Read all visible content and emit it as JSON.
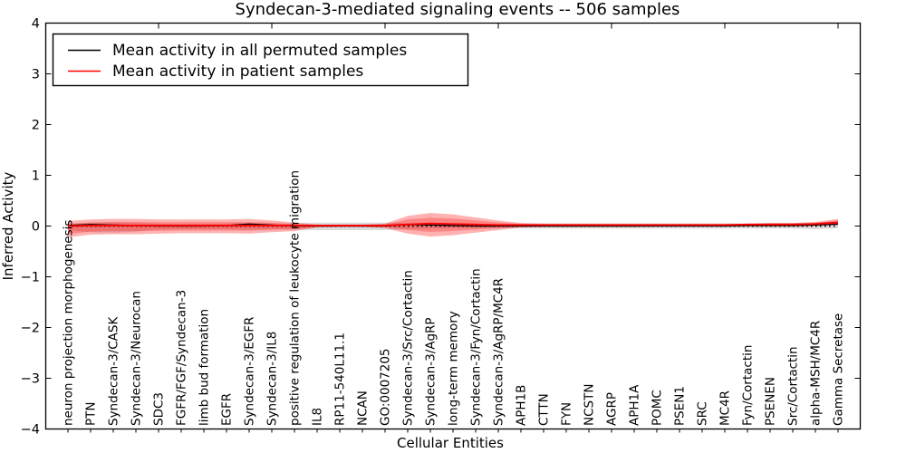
{
  "figure": {
    "background": "#ffffff",
    "axis_color": "#000000"
  },
  "chart_data": {
    "type": "line",
    "title": "Syndecan-3-mediated signaling events -- 506 samples",
    "xlabel": "Cellular Entities",
    "ylabel": "Inferred Activity",
    "ylim": [
      -4,
      4
    ],
    "yticks": [
      4,
      3,
      2,
      1,
      0,
      -1,
      -2,
      -3,
      -4
    ],
    "grid": false,
    "zero_line": {
      "show": true,
      "style": "dotted",
      "color": "#000000"
    },
    "legend_position": "upper left",
    "legend": [
      {
        "label": "Mean activity in all permuted samples",
        "color": "#000000"
      },
      {
        "label": "Mean activity in patient samples",
        "color": "#ff0000"
      }
    ],
    "categories": [
      "neuron projection morphogenesis",
      "PTN",
      "Syndecan-3/CASK",
      "Syndecan-3/Neurocan",
      "SDC3",
      "FGFR/FGF/Syndecan-3",
      "limb bud formation",
      "EGFR",
      "Syndecan-3/EGFR",
      "Syndecan-3/IL8",
      "positive regulation of leukocyte migration",
      "IL8",
      "RP11-540L11.1",
      "NCAN",
      "GO:0007205",
      "Syndecan-3/Src/Cortactin",
      "Syndecan-3/AgRP",
      "long-term memory",
      "Syndecan-3/Fyn/Cortactin",
      "Syndecan-3/AgRP/MC4R",
      "APH1B",
      "CTTN",
      "FYN",
      "NCSTN",
      "AGRP",
      "APH1A",
      "POMC",
      "PSEN1",
      "SRC",
      "MC4R",
      "Fyn/Cortactin",
      "PSENEN",
      "Src/Cortactin",
      "alpha-MSH/MC4R",
      "Gamma Secretase"
    ],
    "series": [
      {
        "name": "Mean activity in all permuted samples",
        "color": "#000000",
        "values": [
          0.01,
          0.03,
          0.02,
          0.01,
          0.0,
          0.0,
          0.0,
          0.01,
          0.04,
          0.02,
          0.0,
          0.0,
          0.0,
          0.0,
          0.0,
          0.03,
          0.02,
          0.01,
          0.0,
          0.0,
          0.0,
          0.0,
          0.0,
          0.0,
          0.0,
          0.0,
          0.0,
          0.0,
          0.0,
          0.0,
          0.01,
          0.01,
          0.01,
          0.02,
          0.04
        ]
      },
      {
        "name": "Mean activity in patient samples",
        "color": "#ff0000",
        "values": [
          0.0,
          0.01,
          0.01,
          0.01,
          0.01,
          0.01,
          0.01,
          0.01,
          0.01,
          0.01,
          0.01,
          0.01,
          0.01,
          0.01,
          0.01,
          0.03,
          0.05,
          0.04,
          0.03,
          0.02,
          0.02,
          0.02,
          0.02,
          0.02,
          0.02,
          0.02,
          0.02,
          0.02,
          0.02,
          0.02,
          0.03,
          0.03,
          0.03,
          0.04,
          0.07
        ]
      }
    ],
    "bands": [
      {
        "name": "permuted-samples-std",
        "color": "#000000",
        "opacity": 0.14,
        "hi": [
          0.05,
          0.07,
          0.07,
          0.06,
          0.05,
          0.04,
          0.04,
          0.05,
          0.06,
          0.05,
          0.06,
          0.07,
          0.07,
          0.07,
          0.07,
          0.06,
          0.05,
          0.04,
          0.04,
          0.04,
          0.05,
          0.05,
          0.05,
          0.05,
          0.05,
          0.05,
          0.05,
          0.05,
          0.05,
          0.05,
          0.05,
          0.06,
          0.06,
          0.07,
          0.09
        ],
        "lo": [
          -0.08,
          -0.12,
          -0.13,
          -0.11,
          -0.07,
          -0.06,
          -0.06,
          -0.06,
          -0.07,
          -0.06,
          -0.07,
          -0.08,
          -0.08,
          -0.08,
          -0.08,
          -0.06,
          -0.05,
          -0.04,
          -0.04,
          -0.04,
          -0.05,
          -0.05,
          -0.05,
          -0.05,
          -0.05,
          -0.05,
          -0.05,
          -0.05,
          -0.05,
          -0.05,
          -0.05,
          -0.05,
          -0.05,
          -0.06,
          -0.05
        ]
      },
      {
        "name": "patient-samples-std",
        "color": "#ff0000",
        "opacity": 0.3,
        "inner_opacity": 0.25,
        "hi": [
          0.1,
          0.13,
          0.14,
          0.14,
          0.13,
          0.13,
          0.13,
          0.13,
          0.14,
          0.11,
          0.07,
          0.03,
          0.03,
          0.03,
          0.05,
          0.2,
          0.26,
          0.23,
          0.17,
          0.11,
          0.06,
          0.05,
          0.05,
          0.05,
          0.05,
          0.05,
          0.05,
          0.05,
          0.05,
          0.05,
          0.05,
          0.06,
          0.06,
          0.08,
          0.14
        ],
        "lo": [
          -0.22,
          -0.17,
          -0.16,
          -0.16,
          -0.15,
          -0.14,
          -0.14,
          -0.14,
          -0.15,
          -0.12,
          -0.1,
          -0.03,
          -0.02,
          -0.02,
          -0.04,
          -0.15,
          -0.21,
          -0.18,
          -0.13,
          -0.08,
          -0.03,
          -0.02,
          -0.02,
          -0.02,
          -0.02,
          -0.02,
          -0.01,
          -0.01,
          -0.01,
          -0.01,
          -0.01,
          -0.01,
          -0.01,
          0.0,
          0.01
        ]
      }
    ]
  }
}
